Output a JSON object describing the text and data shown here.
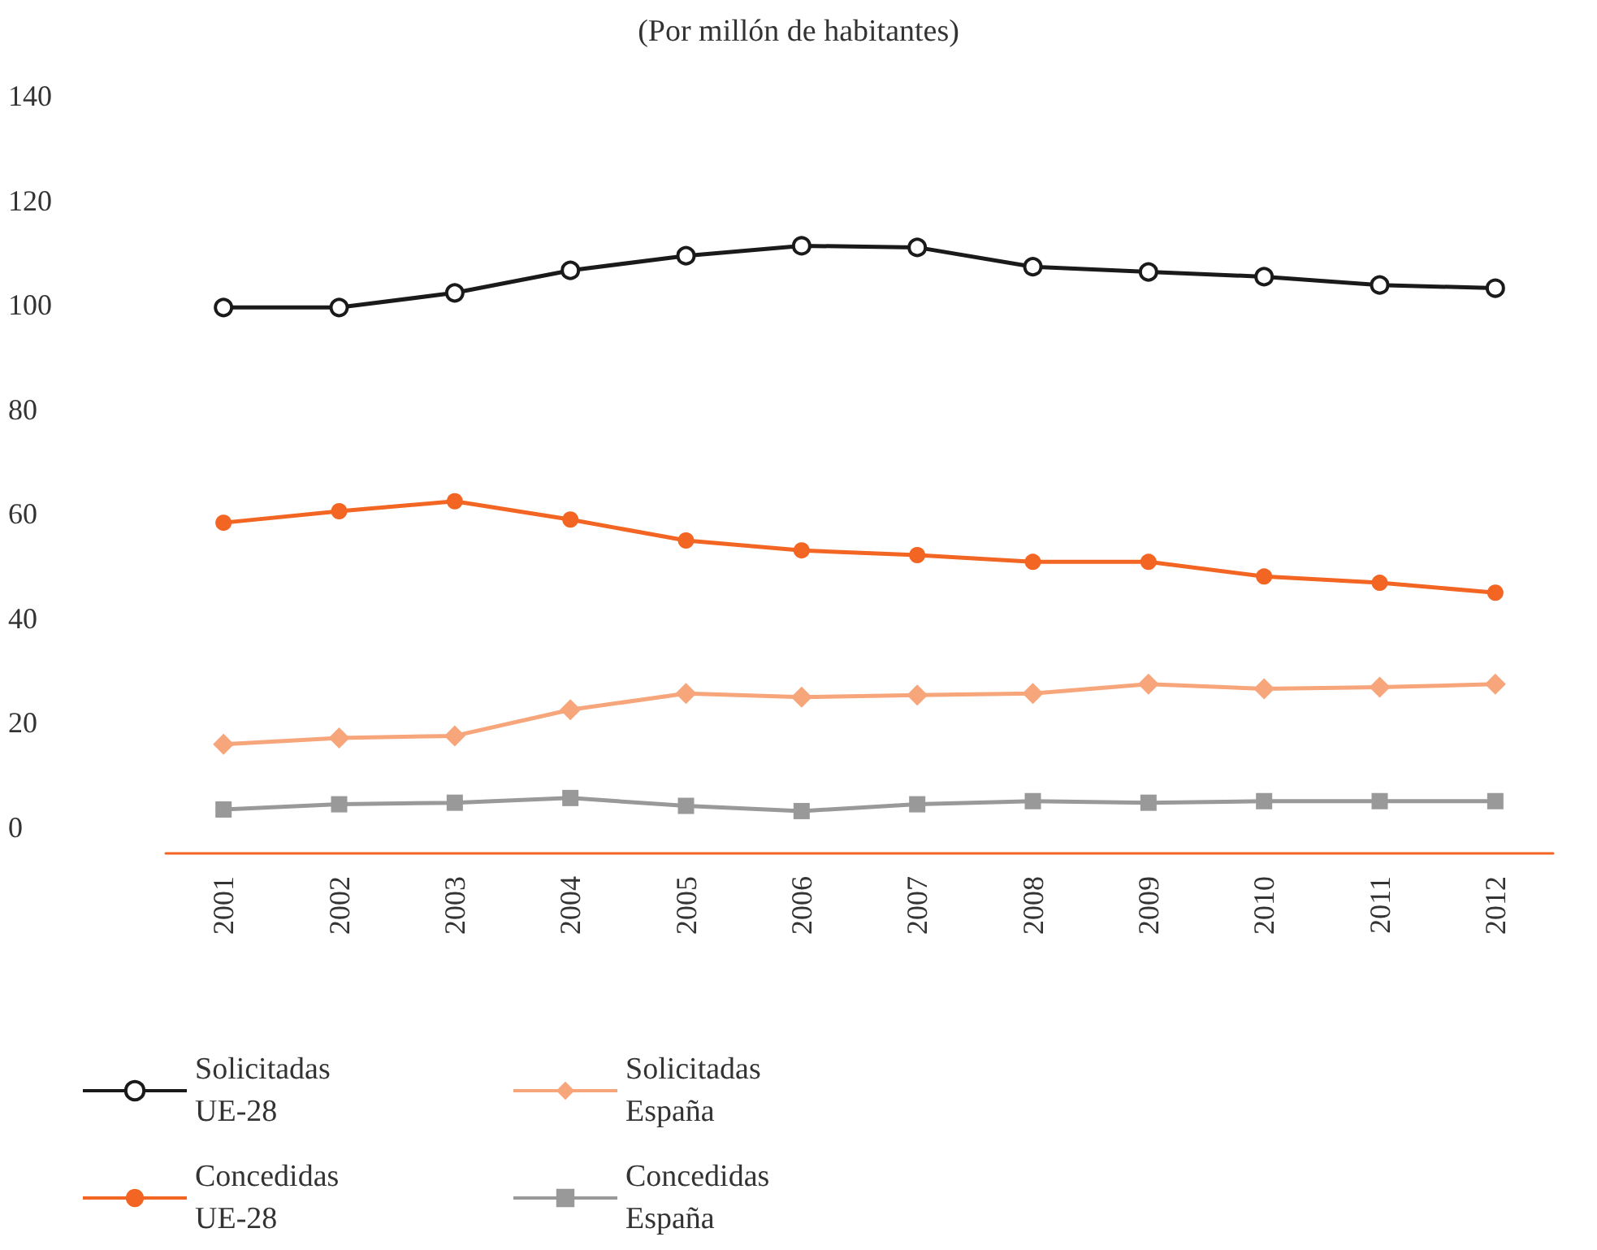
{
  "chart_data": {
    "type": "line",
    "subtitle": "(Por millón de habitantes)",
    "categories": [
      "2001",
      "2002",
      "2003",
      "2004",
      "2005",
      "2006",
      "2007",
      "2008",
      "2009",
      "2010",
      "2011",
      "2012"
    ],
    "series": [
      {
        "name": "Solicitadas UE-28",
        "color": "#1a1a1a",
        "marker": "circle",
        "values": [
          99.5,
          99.5,
          102.3,
          106.6,
          109.4,
          111.3,
          111,
          107.3,
          106.3,
          105.4,
          103.8,
          103.2
        ]
      },
      {
        "name": "Concedidas UE-28",
        "color": "#f26522",
        "marker": "circle",
        "values": [
          58.3,
          60.5,
          62.4,
          58.9,
          54.9,
          53,
          52.1,
          50.8,
          50.8,
          48,
          46.8,
          44.9
        ]
      },
      {
        "name": "Solicitadas España",
        "color": "#f7a57a",
        "marker": "diamond",
        "values": [
          15.9,
          17.1,
          17.5,
          22.5,
          25.6,
          24.9,
          25.3,
          25.6,
          27.4,
          26.5,
          26.8,
          27.4
        ]
      },
      {
        "name": "Concedidas España",
        "color": "#999999",
        "marker": "square",
        "values": [
          3.4,
          4.4,
          4.7,
          5.6,
          4.1,
          3.1,
          4.4,
          5,
          4.7,
          5,
          5,
          5
        ]
      }
    ],
    "ylim": [
      -5,
      140
    ],
    "yticks": [
      0,
      20,
      40,
      60,
      80,
      100,
      120,
      140
    ],
    "grid": false,
    "legend": "bottom",
    "line_style": "solid"
  }
}
